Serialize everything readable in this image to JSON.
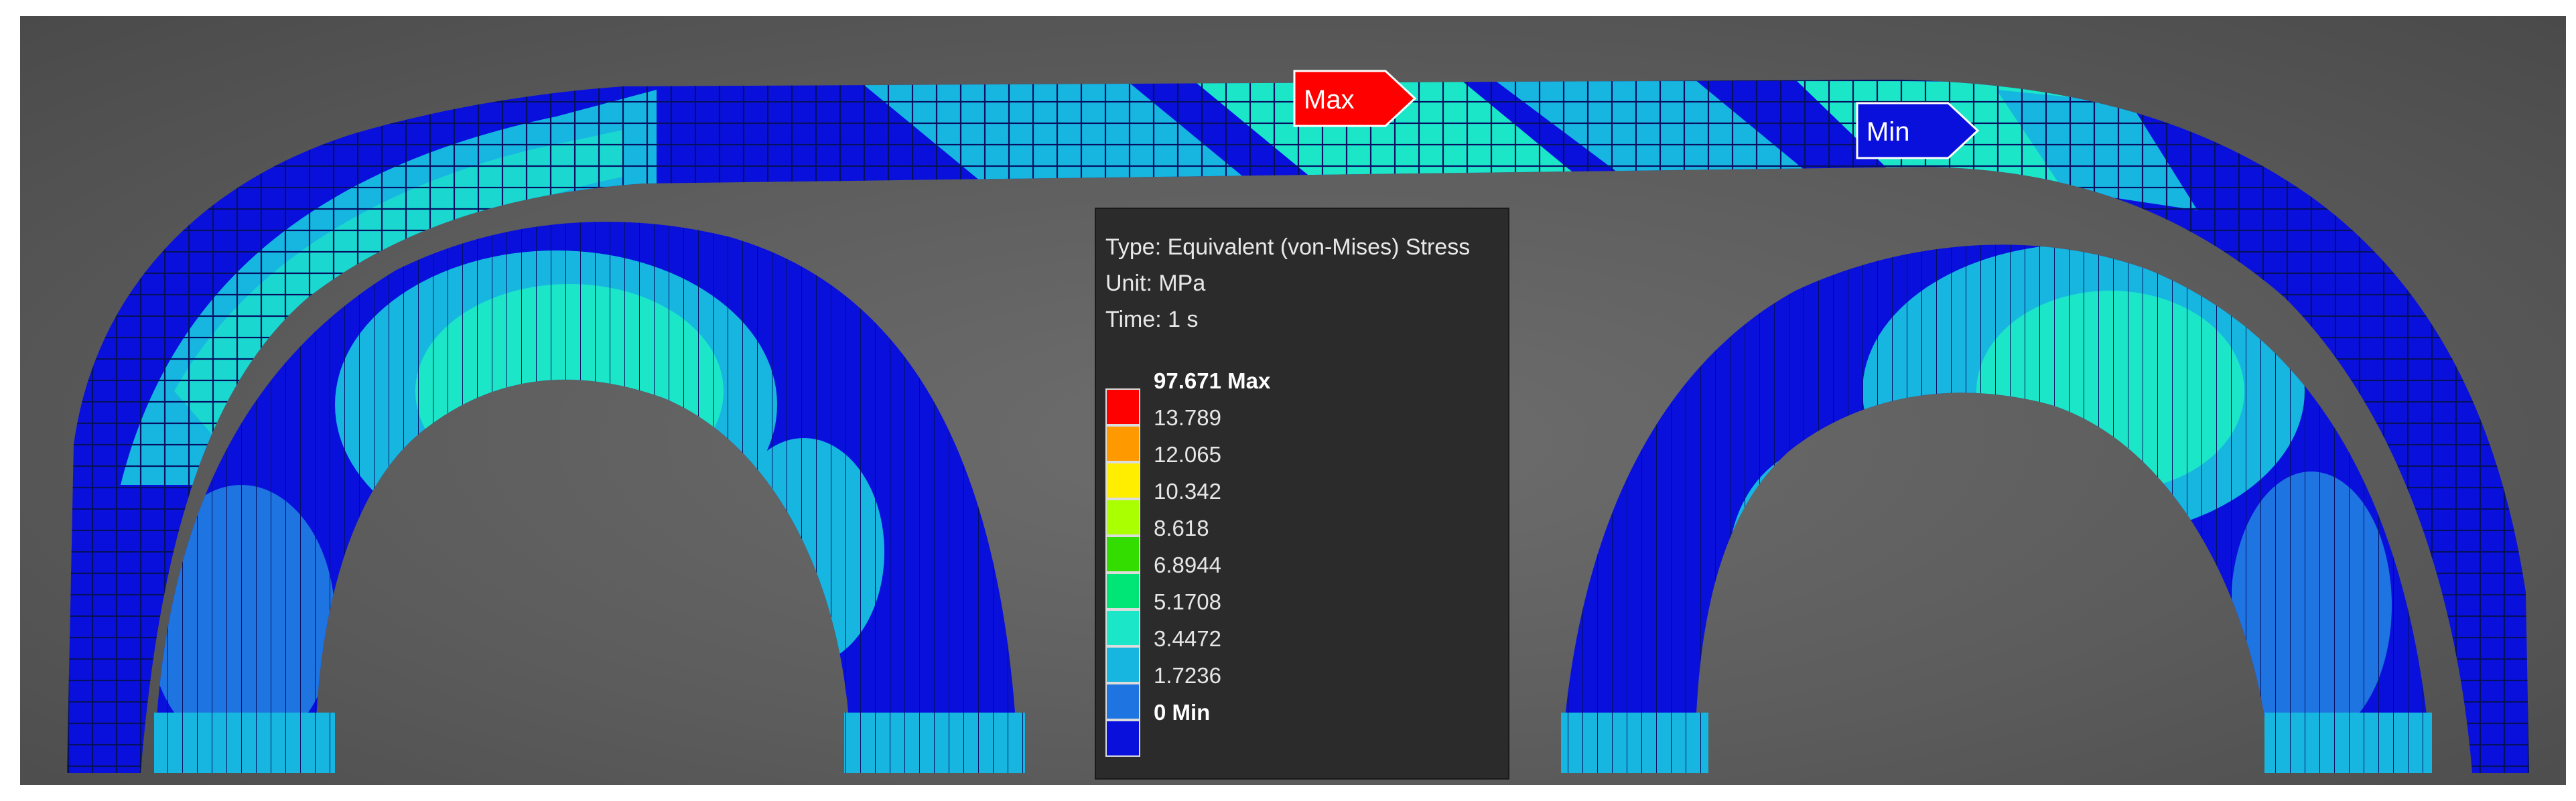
{
  "legend": {
    "type_line": "Type: Equivalent (von-Mises) Stress",
    "unit_line": "Unit: MPa",
    "time_line": "Time: 1 s",
    "entries": [
      {
        "label": "97.671 Max",
        "color": "#ff0000"
      },
      {
        "label": "13.789",
        "color": "#ff9900"
      },
      {
        "label": "12.065",
        "color": "#ffee00"
      },
      {
        "label": "10.342",
        "color": "#aaff00"
      },
      {
        "label": "8.618",
        "color": "#33dd00"
      },
      {
        "label": "6.8944",
        "color": "#00e676"
      },
      {
        "label": "5.1708",
        "color": "#1ce6c8"
      },
      {
        "label": "3.4472",
        "color": "#16b6e0"
      },
      {
        "label": "1.7236",
        "color": "#1e74e0"
      },
      {
        "label": "0 Min",
        "color": "#0a10dc"
      }
    ]
  },
  "probes": {
    "max_label": "Max",
    "max_color": "#ff0000",
    "min_label": "Min",
    "min_color": "#0a10dc"
  }
}
